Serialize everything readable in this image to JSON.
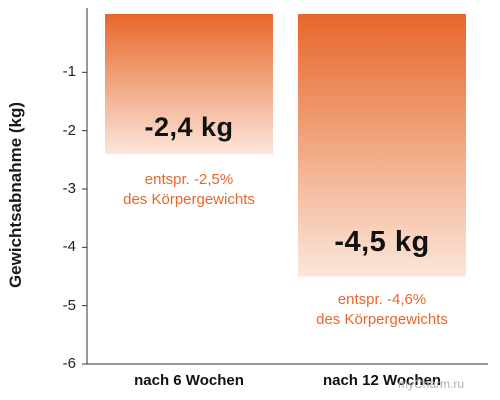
{
  "chart_data": {
    "type": "bar",
    "ylabel": "Gewichtsabnahme (kg)",
    "ylim": [
      -6,
      0
    ],
    "y_ticks": [
      "-1",
      "-2",
      "-3",
      "-4",
      "-5",
      "-6"
    ],
    "categories": [
      "nach 6 Wochen",
      "nach 12 Wochen"
    ],
    "values": [
      -2.4,
      -4.5
    ],
    "data_labels": [
      "-2,4 kg",
      "-4,5 kg"
    ],
    "annotations": [
      [
        "entspr. -2,5%",
        "des Körpergewichts"
      ],
      [
        "entspr. -4,6%",
        "des Körpergewichts"
      ]
    ],
    "colors": {
      "bar_top": "#e8672a",
      "bar_bottom": "#fbe6da",
      "note": "#e8672a"
    }
  },
  "watermark": "myCharm.ru"
}
